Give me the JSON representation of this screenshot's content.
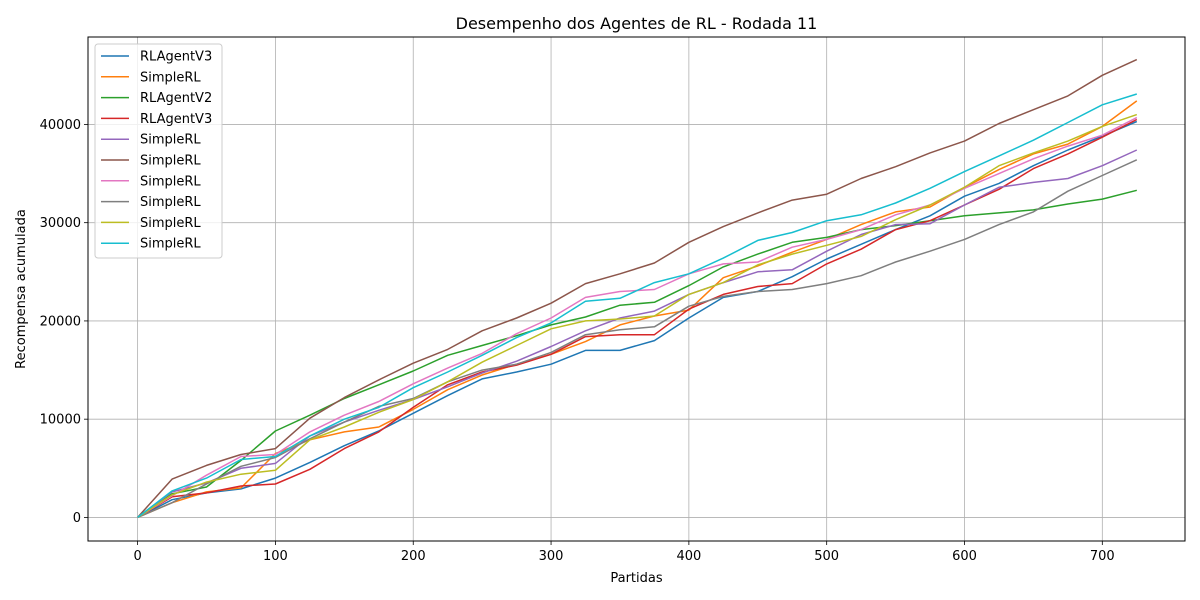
{
  "chart_data": {
    "type": "line",
    "title": "Desempenho dos Agentes de RL - Rodada 11",
    "xlabel": "Partidas",
    "ylabel": "Recompensa acumulada",
    "xlim": [
      -36,
      760
    ],
    "ylim": [
      -2400,
      48900
    ],
    "xticks": [
      0,
      100,
      200,
      300,
      400,
      500,
      600,
      700
    ],
    "yticks": [
      0,
      10000,
      20000,
      30000,
      40000
    ],
    "grid": true,
    "legend_position": "top-left",
    "series": [
      {
        "name": "RLAgentV3",
        "color": "#1f77b4",
        "points": [
          [
            0,
            0
          ],
          [
            25,
            1800
          ],
          [
            50,
            2500
          ],
          [
            75,
            2900
          ],
          [
            100,
            4000
          ],
          [
            125,
            5600
          ],
          [
            150,
            7300
          ],
          [
            175,
            8800
          ],
          [
            200,
            10600
          ],
          [
            225,
            12400
          ],
          [
            250,
            14100
          ],
          [
            275,
            14800
          ],
          [
            300,
            15600
          ],
          [
            325,
            17000
          ],
          [
            350,
            17000
          ],
          [
            375,
            18000
          ],
          [
            400,
            20300
          ],
          [
            425,
            22400
          ],
          [
            450,
            23000
          ],
          [
            475,
            24500
          ],
          [
            500,
            26300
          ],
          [
            525,
            27800
          ],
          [
            550,
            29300
          ],
          [
            575,
            30700
          ],
          [
            600,
            32700
          ],
          [
            625,
            34000
          ],
          [
            650,
            35800
          ],
          [
            675,
            37400
          ],
          [
            700,
            38800
          ],
          [
            725,
            40300
          ]
        ]
      },
      {
        "name": "SimpleRL",
        "color": "#ff7f0e",
        "points": [
          [
            0,
            0
          ],
          [
            25,
            1500
          ],
          [
            50,
            2600
          ],
          [
            75,
            3000
          ],
          [
            100,
            6500
          ],
          [
            125,
            7900
          ],
          [
            150,
            8700
          ],
          [
            175,
            9200
          ],
          [
            200,
            11000
          ],
          [
            225,
            13000
          ],
          [
            250,
            14500
          ],
          [
            275,
            15600
          ],
          [
            300,
            16600
          ],
          [
            325,
            17900
          ],
          [
            350,
            19600
          ],
          [
            375,
            20500
          ],
          [
            400,
            21100
          ],
          [
            425,
            24400
          ],
          [
            450,
            25600
          ],
          [
            475,
            27000
          ],
          [
            500,
            28300
          ],
          [
            525,
            29800
          ],
          [
            550,
            31100
          ],
          [
            575,
            31600
          ],
          [
            600,
            33600
          ],
          [
            625,
            35400
          ],
          [
            650,
            37000
          ],
          [
            675,
            38000
          ],
          [
            700,
            39800
          ],
          [
            725,
            42400
          ]
        ]
      },
      {
        "name": "RLAgentV2",
        "color": "#2ca02c",
        "points": [
          [
            0,
            0
          ],
          [
            25,
            2400
          ],
          [
            50,
            3100
          ],
          [
            75,
            5800
          ],
          [
            100,
            8800
          ],
          [
            125,
            10400
          ],
          [
            150,
            12100
          ],
          [
            175,
            13500
          ],
          [
            200,
            14900
          ],
          [
            225,
            16500
          ],
          [
            250,
            17500
          ],
          [
            275,
            18500
          ],
          [
            300,
            19600
          ],
          [
            325,
            20400
          ],
          [
            350,
            21600
          ],
          [
            375,
            21900
          ],
          [
            400,
            23600
          ],
          [
            425,
            25500
          ],
          [
            450,
            26800
          ],
          [
            475,
            28000
          ],
          [
            500,
            28500
          ],
          [
            525,
            29300
          ],
          [
            550,
            29700
          ],
          [
            575,
            30200
          ],
          [
            600,
            30700
          ],
          [
            625,
            31000
          ],
          [
            650,
            31300
          ],
          [
            675,
            31900
          ],
          [
            700,
            32400
          ],
          [
            725,
            33300
          ]
        ]
      },
      {
        "name": "RLAgentV3",
        "color": "#d62728",
        "points": [
          [
            0,
            0
          ],
          [
            25,
            2100
          ],
          [
            50,
            2500
          ],
          [
            75,
            3200
          ],
          [
            100,
            3400
          ],
          [
            125,
            4900
          ],
          [
            150,
            7000
          ],
          [
            175,
            8700
          ],
          [
            200,
            11200
          ],
          [
            225,
            13500
          ],
          [
            250,
            14800
          ],
          [
            275,
            15500
          ],
          [
            300,
            16600
          ],
          [
            325,
            18400
          ],
          [
            350,
            18600
          ],
          [
            375,
            18600
          ],
          [
            400,
            21200
          ],
          [
            425,
            22700
          ],
          [
            450,
            23500
          ],
          [
            475,
            23800
          ],
          [
            500,
            25800
          ],
          [
            525,
            27300
          ],
          [
            550,
            29300
          ],
          [
            575,
            30200
          ],
          [
            600,
            31800
          ],
          [
            625,
            33400
          ],
          [
            650,
            35500
          ],
          [
            675,
            37000
          ],
          [
            700,
            38700
          ],
          [
            725,
            40500
          ]
        ]
      },
      {
        "name": "SimpleRL",
        "color": "#9467bd",
        "points": [
          [
            0,
            0
          ],
          [
            25,
            2600
          ],
          [
            50,
            3500
          ],
          [
            75,
            5000
          ],
          [
            100,
            5500
          ],
          [
            125,
            8300
          ],
          [
            150,
            9700
          ],
          [
            175,
            10900
          ],
          [
            200,
            12000
          ],
          [
            225,
            13300
          ],
          [
            250,
            14700
          ],
          [
            275,
            15900
          ],
          [
            300,
            17400
          ],
          [
            325,
            19000
          ],
          [
            350,
            20300
          ],
          [
            375,
            21000
          ],
          [
            400,
            22700
          ],
          [
            425,
            23900
          ],
          [
            450,
            25000
          ],
          [
            475,
            25200
          ],
          [
            500,
            27100
          ],
          [
            525,
            28800
          ],
          [
            550,
            29800
          ],
          [
            575,
            29900
          ],
          [
            600,
            31800
          ],
          [
            625,
            33600
          ],
          [
            650,
            34100
          ],
          [
            675,
            34500
          ],
          [
            700,
            35800
          ],
          [
            725,
            37400
          ]
        ]
      },
      {
        "name": "SimpleRL",
        "color": "#8c564b",
        "points": [
          [
            0,
            0
          ],
          [
            25,
            3900
          ],
          [
            50,
            5300
          ],
          [
            75,
            6400
          ],
          [
            100,
            7000
          ],
          [
            125,
            10100
          ],
          [
            150,
            12200
          ],
          [
            175,
            14000
          ],
          [
            200,
            15700
          ],
          [
            225,
            17100
          ],
          [
            250,
            19000
          ],
          [
            275,
            20300
          ],
          [
            300,
            21800
          ],
          [
            325,
            23800
          ],
          [
            350,
            24800
          ],
          [
            375,
            25900
          ],
          [
            400,
            28000
          ],
          [
            425,
            29600
          ],
          [
            450,
            31000
          ],
          [
            475,
            32300
          ],
          [
            500,
            32900
          ],
          [
            525,
            34500
          ],
          [
            550,
            35700
          ],
          [
            575,
            37100
          ],
          [
            600,
            38300
          ],
          [
            625,
            40100
          ],
          [
            650,
            41500
          ],
          [
            675,
            42900
          ],
          [
            700,
            45000
          ],
          [
            725,
            46600
          ]
        ]
      },
      {
        "name": "SimpleRL",
        "color": "#e377c2",
        "points": [
          [
            0,
            0
          ],
          [
            25,
            2200
          ],
          [
            50,
            4300
          ],
          [
            75,
            6200
          ],
          [
            100,
            6400
          ],
          [
            125,
            8700
          ],
          [
            150,
            10400
          ],
          [
            175,
            11800
          ],
          [
            200,
            13600
          ],
          [
            225,
            15200
          ],
          [
            250,
            16700
          ],
          [
            275,
            18700
          ],
          [
            300,
            20300
          ],
          [
            325,
            22400
          ],
          [
            350,
            23000
          ],
          [
            375,
            23200
          ],
          [
            400,
            24800
          ],
          [
            425,
            25800
          ],
          [
            450,
            26000
          ],
          [
            475,
            27500
          ],
          [
            500,
            28300
          ],
          [
            525,
            29300
          ],
          [
            550,
            30800
          ],
          [
            575,
            31800
          ],
          [
            600,
            33500
          ],
          [
            625,
            35000
          ],
          [
            650,
            36500
          ],
          [
            675,
            37800
          ],
          [
            700,
            38900
          ],
          [
            725,
            40700
          ]
        ]
      },
      {
        "name": "SimpleRL",
        "color": "#7f7f7f",
        "points": [
          [
            0,
            0
          ],
          [
            25,
            1500
          ],
          [
            50,
            3400
          ],
          [
            75,
            5200
          ],
          [
            100,
            6100
          ],
          [
            125,
            8000
          ],
          [
            150,
            9700
          ],
          [
            175,
            11300
          ],
          [
            200,
            12100
          ],
          [
            225,
            13800
          ],
          [
            250,
            15000
          ],
          [
            275,
            15600
          ],
          [
            300,
            16800
          ],
          [
            325,
            18600
          ],
          [
            350,
            19100
          ],
          [
            375,
            19400
          ],
          [
            400,
            21500
          ],
          [
            425,
            22500
          ],
          [
            450,
            23000
          ],
          [
            475,
            23200
          ],
          [
            500,
            23800
          ],
          [
            525,
            24600
          ],
          [
            550,
            26000
          ],
          [
            575,
            27100
          ],
          [
            600,
            28300
          ],
          [
            625,
            29800
          ],
          [
            650,
            31100
          ],
          [
            675,
            33200
          ],
          [
            700,
            34800
          ],
          [
            725,
            36400
          ]
        ]
      },
      {
        "name": "SimpleRL",
        "color": "#bcbd22",
        "points": [
          [
            0,
            0
          ],
          [
            25,
            2300
          ],
          [
            50,
            3600
          ],
          [
            75,
            4400
          ],
          [
            100,
            4800
          ],
          [
            125,
            7900
          ],
          [
            150,
            9200
          ],
          [
            175,
            10700
          ],
          [
            200,
            12000
          ],
          [
            225,
            13800
          ],
          [
            250,
            15800
          ],
          [
            275,
            17500
          ],
          [
            300,
            19200
          ],
          [
            325,
            20000
          ],
          [
            350,
            20200
          ],
          [
            375,
            20500
          ],
          [
            400,
            22700
          ],
          [
            425,
            23900
          ],
          [
            450,
            25700
          ],
          [
            475,
            26800
          ],
          [
            500,
            27700
          ],
          [
            525,
            28600
          ],
          [
            550,
            30300
          ],
          [
            575,
            31800
          ],
          [
            600,
            33600
          ],
          [
            625,
            35800
          ],
          [
            650,
            37100
          ],
          [
            675,
            38300
          ],
          [
            700,
            39800
          ],
          [
            725,
            41000
          ]
        ]
      },
      {
        "name": "SimpleRL",
        "color": "#17becf",
        "points": [
          [
            0,
            0
          ],
          [
            25,
            2700
          ],
          [
            50,
            4000
          ],
          [
            75,
            5900
          ],
          [
            100,
            6200
          ],
          [
            125,
            8300
          ],
          [
            150,
            10000
          ],
          [
            175,
            11200
          ],
          [
            200,
            13200
          ],
          [
            225,
            14800
          ],
          [
            250,
            16500
          ],
          [
            275,
            18300
          ],
          [
            300,
            19800
          ],
          [
            325,
            22000
          ],
          [
            350,
            22300
          ],
          [
            375,
            23900
          ],
          [
            400,
            24800
          ],
          [
            425,
            26400
          ],
          [
            450,
            28200
          ],
          [
            475,
            29000
          ],
          [
            500,
            30200
          ],
          [
            525,
            30800
          ],
          [
            550,
            32000
          ],
          [
            575,
            33500
          ],
          [
            600,
            35200
          ],
          [
            625,
            36800
          ],
          [
            650,
            38400
          ],
          [
            675,
            40200
          ],
          [
            700,
            42000
          ],
          [
            725,
            43100
          ]
        ]
      }
    ]
  }
}
